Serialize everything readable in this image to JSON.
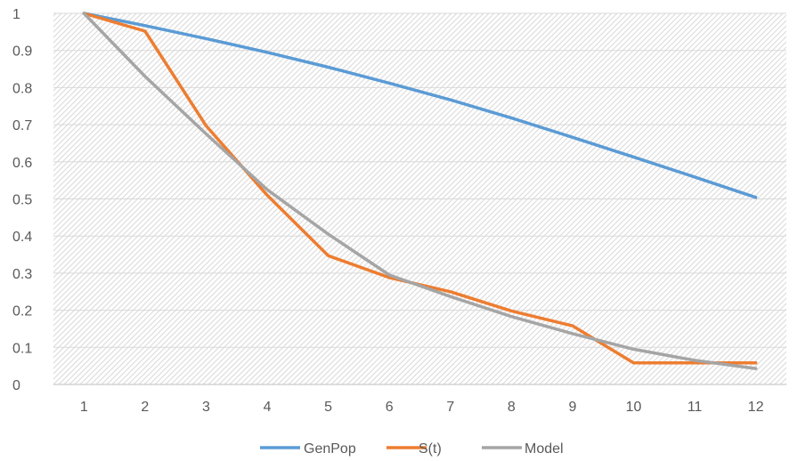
{
  "chart_data": {
    "type": "line",
    "title": "",
    "xlabel": "",
    "ylabel": "",
    "categories": [
      "1",
      "2",
      "3",
      "4",
      "5",
      "6",
      "7",
      "8",
      "9",
      "10",
      "11",
      "12"
    ],
    "ylim": [
      0,
      1
    ],
    "yticks": [
      "0",
      "0.1",
      "0.2",
      "0.3",
      "0.4",
      "0.5",
      "0.6",
      "0.7",
      "0.8",
      "0.9",
      "1"
    ],
    "grid": true,
    "legend_position": "bottom",
    "series": [
      {
        "name": "GenPop",
        "color": "#5B9BD5",
        "values": [
          1.0,
          0.967,
          0.932,
          0.895,
          0.855,
          0.812,
          0.767,
          0.718,
          0.666,
          0.613,
          0.559,
          0.504
        ]
      },
      {
        "name": "S(t)",
        "color": "#ED7D31",
        "values": [
          1.0,
          0.952,
          0.697,
          0.51,
          0.347,
          0.288,
          0.25,
          0.198,
          0.158,
          0.058,
          0.058,
          0.058
        ]
      },
      {
        "name": "Model",
        "color": "#A5A5A5",
        "values": [
          1.0,
          0.83,
          0.675,
          0.525,
          0.405,
          0.295,
          0.237,
          0.183,
          0.137,
          0.095,
          0.065,
          0.043
        ]
      }
    ]
  }
}
